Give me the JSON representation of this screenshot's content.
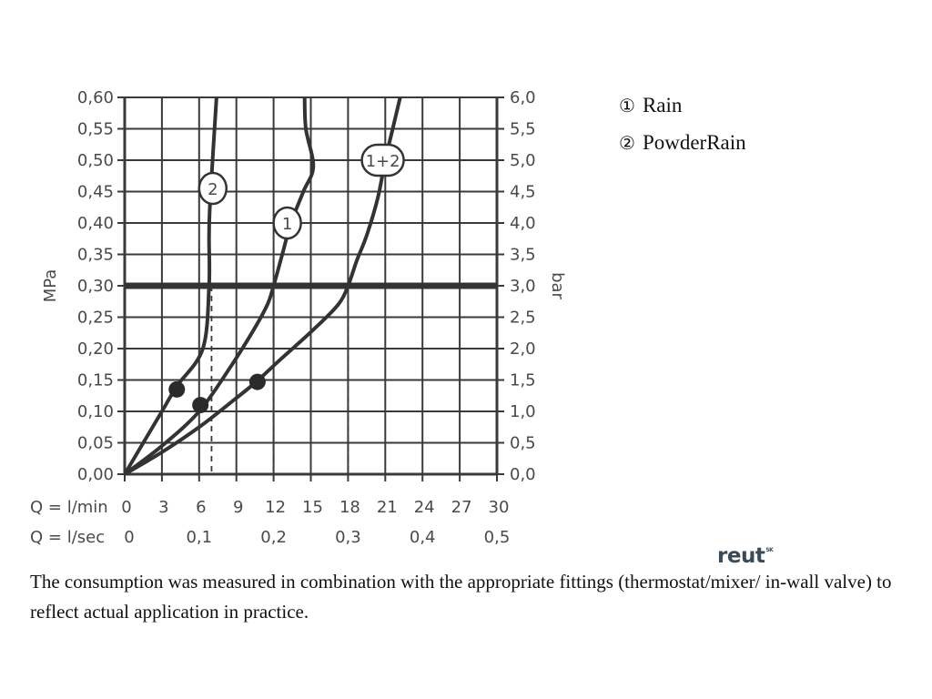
{
  "chart_data": {
    "type": "line",
    "y_left": {
      "label": "MPa",
      "range": [
        0,
        0.6
      ],
      "ticks": [
        "0,00",
        "0,05",
        "0,10",
        "0,15",
        "0,20",
        "0,25",
        "0,30",
        "0,35",
        "0,40",
        "0,45",
        "0,50",
        "0,55",
        "0,60"
      ]
    },
    "y_right": {
      "label": "bar",
      "range": [
        0,
        6
      ],
      "ticks": [
        "0,0",
        "0,5",
        "1,0",
        "1,5",
        "2,0",
        "2,5",
        "3,0",
        "3,5",
        "4,0",
        "4,5",
        "5,0",
        "5,5",
        "6,0"
      ]
    },
    "x_primary": {
      "label": "Q = l/min",
      "range": [
        0,
        30
      ],
      "ticks": [
        "0",
        "3",
        "6",
        "9",
        "12",
        "15",
        "18",
        "21",
        "24",
        "27",
        "30"
      ]
    },
    "x_secondary": {
      "label": "Q = l/sec",
      "ticks": [
        "0",
        "0,1",
        "0,2",
        "0,3",
        "0,4",
        "0,5"
      ]
    },
    "grid": true,
    "reference_line": {
      "y": 0.3
    },
    "series": [
      {
        "name": "2",
        "points": [
          [
            0,
            0
          ],
          [
            3,
            0.1
          ],
          [
            4.2,
            0.14
          ],
          [
            6.3,
            0.2
          ],
          [
            6.8,
            0.3
          ],
          [
            6.8,
            0.38
          ],
          [
            6.9,
            0.44
          ],
          [
            7.4,
            0.6
          ]
        ],
        "marker": [
          4.2,
          0.135
        ],
        "label_at": [
          7.1,
          0.455
        ],
        "drop_at": [
          7.0,
          0.3
        ]
      },
      {
        "name": "1",
        "points": [
          [
            0,
            0
          ],
          [
            3,
            0.045
          ],
          [
            6,
            0.1
          ],
          [
            8.5,
            0.17
          ],
          [
            10.4,
            0.23
          ],
          [
            11.5,
            0.27
          ],
          [
            12,
            0.3
          ],
          [
            12.7,
            0.35
          ],
          [
            13.4,
            0.4
          ],
          [
            14.4,
            0.45
          ],
          [
            15.2,
            0.49
          ],
          [
            14.6,
            0.55
          ],
          [
            14.5,
            0.6
          ]
        ],
        "marker": [
          6.1,
          0.11
        ],
        "label_at": [
          13.1,
          0.4
        ],
        "drop_at": [
          12.0,
          0.3
        ]
      },
      {
        "name": "1+2",
        "points": [
          [
            0,
            0
          ],
          [
            3,
            0.035
          ],
          [
            6,
            0.075
          ],
          [
            8.6,
            0.115
          ],
          [
            10.6,
            0.147
          ],
          [
            12.4,
            0.18
          ],
          [
            15.2,
            0.23
          ],
          [
            17.2,
            0.27
          ],
          [
            18,
            0.3
          ],
          [
            18.7,
            0.34
          ],
          [
            19.5,
            0.38
          ],
          [
            20.4,
            0.44
          ],
          [
            21,
            0.5
          ],
          [
            21.6,
            0.55
          ],
          [
            22.2,
            0.6
          ]
        ],
        "marker": [
          10.7,
          0.147
        ],
        "label_at": [
          20.8,
          0.5
        ],
        "drop_at": [
          18.0,
          0.3
        ]
      }
    ]
  },
  "legend": [
    {
      "marker": "①",
      "label": "Rain"
    },
    {
      "marker": "②",
      "label": "PowderRain"
    }
  ],
  "caption": "The consumption was measured in combination with the appropriate fittings (thermostat/mixer/ in-wall valve) to reflect actual application in practice.",
  "logo": {
    "text": "reut",
    "sup": "SK"
  }
}
